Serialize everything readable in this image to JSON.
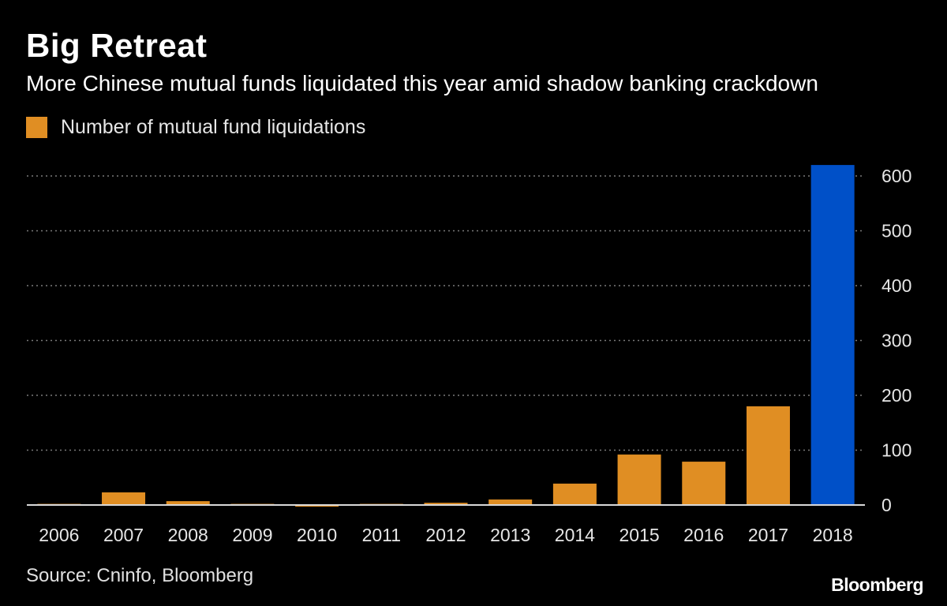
{
  "header": {
    "title": "Big Retreat",
    "subtitle": "More Chinese mutual funds liquidated this year amid shadow banking crackdown"
  },
  "footer": {
    "source": "Source: Cninfo, Bloomberg",
    "brand": "Bloomberg"
  },
  "colors": {
    "background": "#000000",
    "bar_default": "#e08e23",
    "bar_highlight": "#0050c8",
    "gridline": "#7a7a7a",
    "text": "#e6e6e6"
  },
  "chart_data": {
    "type": "bar",
    "title": "Big Retreat",
    "subtitle": "More Chinese mutual funds liquidated this year amid shadow banking crackdown",
    "xlabel": "",
    "ylabel": "",
    "categories": [
      "2006",
      "2007",
      "2008",
      "2009",
      "2010",
      "2011",
      "2012",
      "2013",
      "2014",
      "2015",
      "2016",
      "2017",
      "2018"
    ],
    "series": [
      {
        "name": "Number of mutual fund liquidations",
        "values": [
          2,
          23,
          7,
          2,
          -3,
          2,
          4,
          10,
          39,
          92,
          79,
          180,
          620
        ]
      }
    ],
    "highlight_category": "2018",
    "ylim": [
      0,
      620
    ],
    "yticks": [
      0,
      100,
      200,
      300,
      400,
      500,
      600
    ],
    "y_axis_side": "right",
    "grid": true,
    "grid_style": "dotted",
    "legend_position": "top-left"
  }
}
